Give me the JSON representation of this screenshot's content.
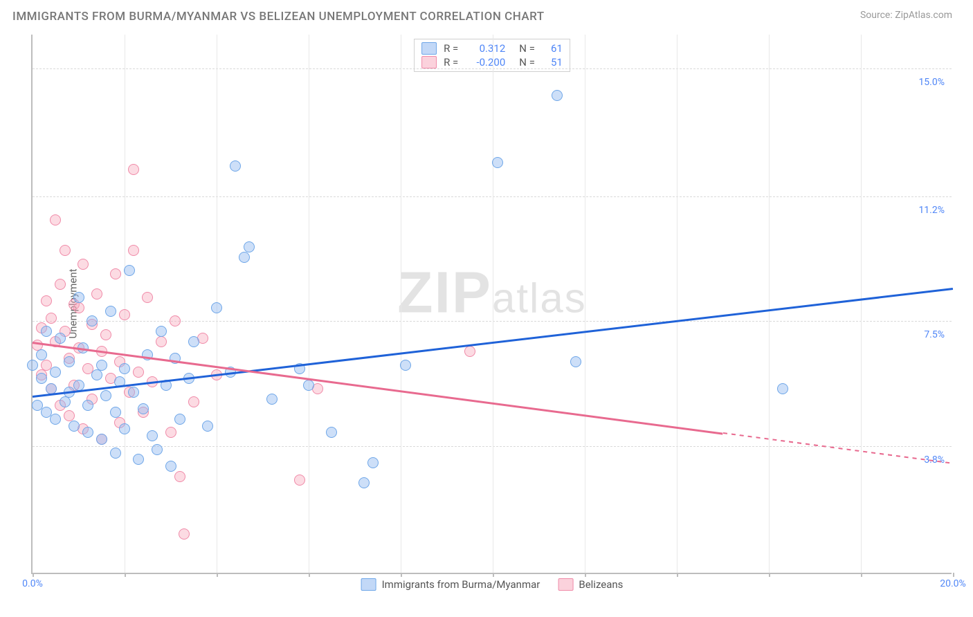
{
  "title": "IMMIGRANTS FROM BURMA/MYANMAR VS BELIZEAN UNEMPLOYMENT CORRELATION CHART",
  "source": "Source: ZipAtlas.com",
  "watermark_main": "ZIP",
  "watermark_sub": "atlas",
  "ylabel": "Unemployment",
  "plot": {
    "xlim": [
      0,
      20
    ],
    "ylim": [
      0,
      16
    ],
    "x_start_label": "0.0%",
    "x_end_label": "20.0%",
    "y_ticks": [
      3.8,
      7.5,
      11.2,
      15.0
    ],
    "y_tick_labels": [
      "3.8%",
      "7.5%",
      "11.2%",
      "15.0%"
    ],
    "x_tick_marks": [
      0,
      2,
      4,
      6,
      8,
      10,
      12,
      14,
      16,
      18,
      20
    ],
    "x_grid": [
      2,
      4,
      6,
      8,
      10,
      12,
      14,
      16,
      18
    ],
    "grid_color": "#d9d9d9",
    "background_color": "#ffffff"
  },
  "legend_top": {
    "rows": [
      {
        "color": "blue",
        "r_label": "R =",
        "r_value": "0.312",
        "n_label": "N =",
        "n_value": "61"
      },
      {
        "color": "pink",
        "r_label": "R =",
        "r_value": "-0.200",
        "n_label": "N =",
        "n_value": "51"
      }
    ]
  },
  "legend_bottom": {
    "items": [
      {
        "color": "blue",
        "label": "Immigrants from Burma/Myanmar"
      },
      {
        "color": "pink",
        "label": "Belizeans"
      }
    ]
  },
  "trend_lines": {
    "blue": {
      "x1": 0.0,
      "y1": 5.3,
      "x2": 20.0,
      "y2": 8.5,
      "color": "#1f62d8"
    },
    "pink_solid": {
      "x1": 0.0,
      "y1": 6.9,
      "x2": 15.0,
      "y2": 4.2,
      "color": "#e86a8f"
    },
    "pink_dash": {
      "x1": 15.0,
      "y1": 4.2,
      "x2": 20.0,
      "y2": 3.3,
      "color": "#e86a8f"
    }
  },
  "series": {
    "blue": {
      "color_fill": "rgba(144,184,240,0.45)",
      "color_stroke": "#6ea6e8",
      "points": [
        [
          0.0,
          6.2
        ],
        [
          0.1,
          5.0
        ],
        [
          0.2,
          5.8
        ],
        [
          0.2,
          6.5
        ],
        [
          0.3,
          7.2
        ],
        [
          0.3,
          4.8
        ],
        [
          0.4,
          5.5
        ],
        [
          0.5,
          6.0
        ],
        [
          0.5,
          4.6
        ],
        [
          0.6,
          7.0
        ],
        [
          0.7,
          5.1
        ],
        [
          0.8,
          6.3
        ],
        [
          0.8,
          5.4
        ],
        [
          0.9,
          4.4
        ],
        [
          1.0,
          8.2
        ],
        [
          1.0,
          5.6
        ],
        [
          1.1,
          6.7
        ],
        [
          1.2,
          4.2
        ],
        [
          1.2,
          5.0
        ],
        [
          1.3,
          7.5
        ],
        [
          1.4,
          5.9
        ],
        [
          1.5,
          4.0
        ],
        [
          1.5,
          6.2
        ],
        [
          1.6,
          5.3
        ],
        [
          1.7,
          7.8
        ],
        [
          1.8,
          3.6
        ],
        [
          1.8,
          4.8
        ],
        [
          1.9,
          5.7
        ],
        [
          2.0,
          6.1
        ],
        [
          2.0,
          4.3
        ],
        [
          2.1,
          9.0
        ],
        [
          2.2,
          5.4
        ],
        [
          2.3,
          3.4
        ],
        [
          2.4,
          4.9
        ],
        [
          2.5,
          6.5
        ],
        [
          2.6,
          4.1
        ],
        [
          2.7,
          3.7
        ],
        [
          2.8,
          7.2
        ],
        [
          2.9,
          5.6
        ],
        [
          3.0,
          3.2
        ],
        [
          3.1,
          6.4
        ],
        [
          3.2,
          4.6
        ],
        [
          3.4,
          5.8
        ],
        [
          3.5,
          6.9
        ],
        [
          3.8,
          4.4
        ],
        [
          4.0,
          7.9
        ],
        [
          4.3,
          6.0
        ],
        [
          4.4,
          12.1
        ],
        [
          4.6,
          9.4
        ],
        [
          4.7,
          9.7
        ],
        [
          5.2,
          5.2
        ],
        [
          5.8,
          6.1
        ],
        [
          6.0,
          5.6
        ],
        [
          6.5,
          4.2
        ],
        [
          7.2,
          2.7
        ],
        [
          7.4,
          3.3
        ],
        [
          8.1,
          6.2
        ],
        [
          10.1,
          12.2
        ],
        [
          11.4,
          14.2
        ],
        [
          11.8,
          6.3
        ],
        [
          16.3,
          5.5
        ]
      ]
    },
    "pink": {
      "color_fill": "rgba(248,165,185,0.40)",
      "color_stroke": "#f08aa8",
      "points": [
        [
          0.1,
          6.8
        ],
        [
          0.2,
          7.3
        ],
        [
          0.2,
          5.9
        ],
        [
          0.3,
          8.1
        ],
        [
          0.3,
          6.2
        ],
        [
          0.4,
          7.6
        ],
        [
          0.4,
          5.5
        ],
        [
          0.5,
          10.5
        ],
        [
          0.5,
          6.9
        ],
        [
          0.6,
          8.6
        ],
        [
          0.6,
          5.0
        ],
        [
          0.7,
          7.2
        ],
        [
          0.7,
          9.6
        ],
        [
          0.8,
          6.4
        ],
        [
          0.8,
          4.7
        ],
        [
          0.9,
          8.0
        ],
        [
          0.9,
          5.6
        ],
        [
          1.0,
          6.7
        ],
        [
          1.0,
          7.9
        ],
        [
          1.1,
          9.2
        ],
        [
          1.1,
          4.3
        ],
        [
          1.2,
          6.1
        ],
        [
          1.3,
          7.4
        ],
        [
          1.3,
          5.2
        ],
        [
          1.4,
          8.3
        ],
        [
          1.5,
          6.6
        ],
        [
          1.5,
          4.0
        ],
        [
          1.6,
          7.1
        ],
        [
          1.7,
          5.8
        ],
        [
          1.8,
          8.9
        ],
        [
          1.9,
          6.3
        ],
        [
          1.9,
          4.5
        ],
        [
          2.0,
          7.7
        ],
        [
          2.1,
          5.4
        ],
        [
          2.2,
          9.6
        ],
        [
          2.2,
          12.0
        ],
        [
          2.3,
          6.0
        ],
        [
          2.4,
          4.8
        ],
        [
          2.5,
          8.2
        ],
        [
          2.6,
          5.7
        ],
        [
          2.8,
          6.9
        ],
        [
          3.0,
          4.2
        ],
        [
          3.1,
          7.5
        ],
        [
          3.2,
          2.9
        ],
        [
          3.3,
          1.2
        ],
        [
          3.5,
          5.1
        ],
        [
          3.7,
          7.0
        ],
        [
          4.0,
          5.9
        ],
        [
          5.8,
          2.8
        ],
        [
          6.2,
          5.5
        ],
        [
          9.5,
          6.6
        ]
      ]
    }
  }
}
